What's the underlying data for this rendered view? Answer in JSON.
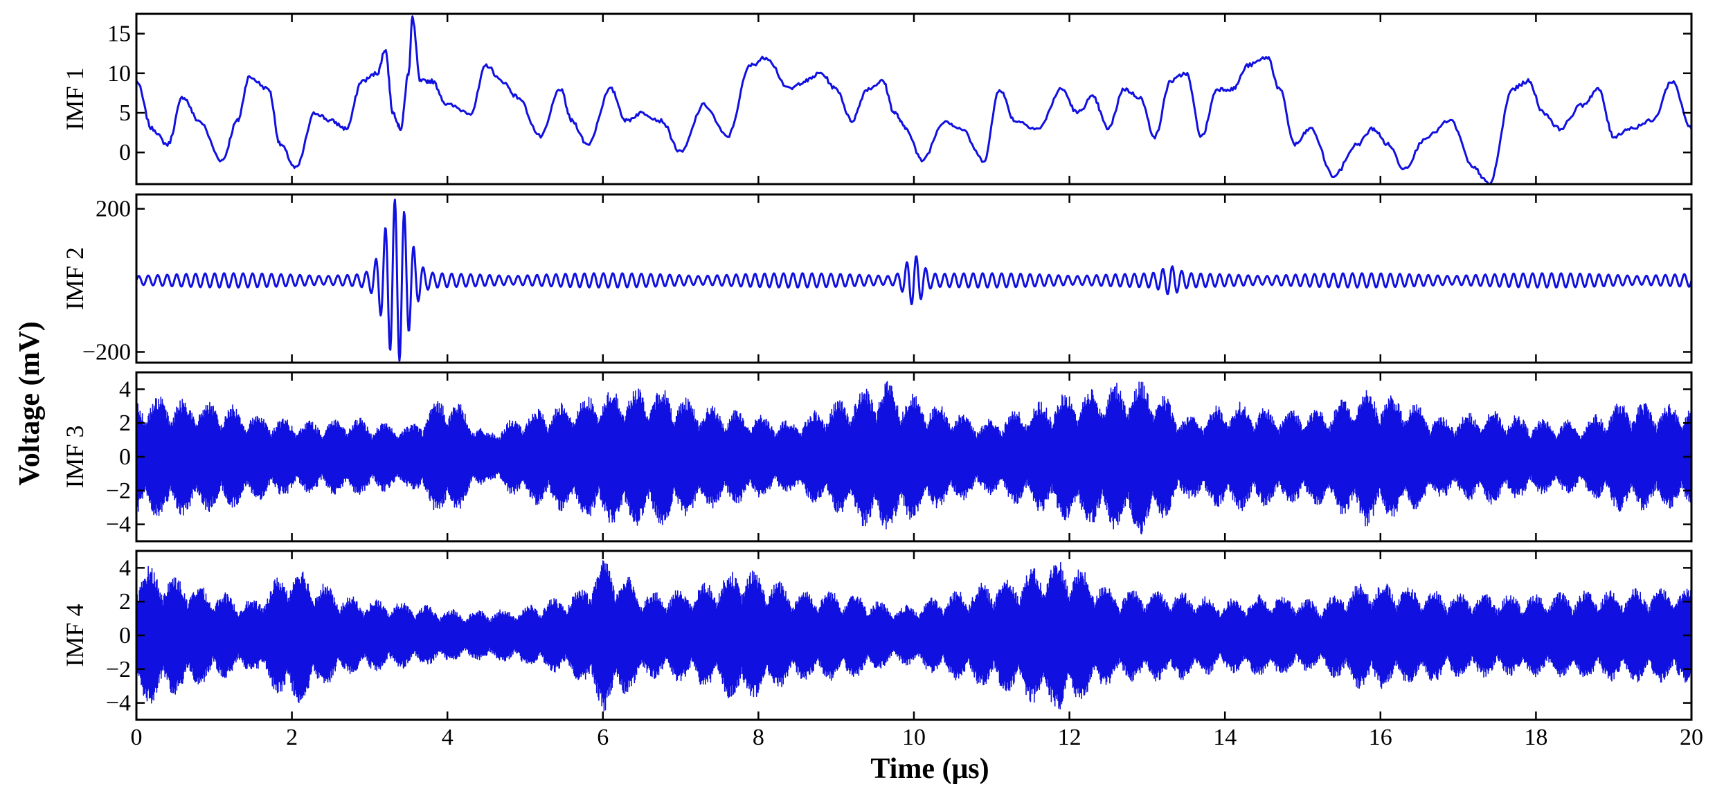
{
  "chart_data": {
    "type": "line",
    "xlabel": "Time (μs)",
    "ylabel": "Voltage (mV)",
    "xlim": [
      0,
      20
    ],
    "x_ticks": [
      0,
      2,
      4,
      6,
      8,
      10,
      12,
      14,
      16,
      18,
      20
    ],
    "x_tick_labels": [
      "0",
      "2",
      "4",
      "6",
      "8",
      "10",
      "12",
      "14",
      "16",
      "18",
      "20"
    ],
    "line_color": "#1010e0",
    "grid": false,
    "legend": "none",
    "panels": [
      {
        "name": "IMF 1",
        "ylim": [
          -4,
          17.5
        ],
        "y_ticks": [
          0,
          5,
          10,
          15
        ],
        "y_tick_labels": [
          "0",
          "5",
          "10",
          "15"
        ],
        "x": [
          0,
          0.2,
          0.4,
          0.6,
          0.8,
          1.1,
          1.3,
          1.45,
          1.7,
          1.85,
          2.05,
          2.3,
          2.5,
          2.7,
          2.9,
          3.1,
          3.2,
          3.3,
          3.4,
          3.5,
          3.55,
          3.65,
          3.8,
          4.0,
          4.3,
          4.5,
          4.7,
          4.9,
          5.2,
          5.45,
          5.6,
          5.8,
          6.1,
          6.3,
          6.5,
          6.75,
          7.0,
          7.3,
          7.6,
          7.9,
          8.1,
          8.4,
          8.6,
          8.8,
          9.0,
          9.2,
          9.4,
          9.6,
          9.75,
          9.9,
          10.1,
          10.4,
          10.6,
          10.9,
          11.1,
          11.3,
          11.6,
          11.9,
          12.1,
          12.3,
          12.5,
          12.7,
          12.9,
          13.1,
          13.3,
          13.5,
          13.7,
          13.9,
          14.1,
          14.3,
          14.55,
          14.7,
          14.9,
          15.1,
          15.4,
          15.7,
          15.9,
          16.1,
          16.3,
          16.6,
          16.9,
          17.2,
          17.4,
          17.7,
          17.9,
          18.1,
          18.3,
          18.6,
          18.8,
          19.0,
          19.2,
          19.5,
          19.75,
          20.0
        ],
        "y": [
          9,
          3,
          1,
          7,
          4,
          -1,
          4,
          9.5,
          8,
          1,
          -2,
          5,
          4,
          3,
          9,
          10,
          13,
          5,
          3,
          10,
          17,
          9,
          9,
          6,
          5,
          11,
          9,
          7,
          2,
          8,
          4,
          1,
          8,
          4,
          5,
          4,
          0,
          6,
          2,
          11,
          12,
          8,
          9,
          10,
          8,
          4,
          8,
          9,
          5,
          3,
          -1,
          4,
          3,
          -1,
          8,
          4,
          3,
          8,
          5,
          7,
          3,
          8,
          7,
          2,
          9,
          10,
          2,
          8,
          8,
          11,
          12,
          8,
          1,
          3,
          -3,
          1,
          3,
          1,
          -2,
          2,
          4,
          -2,
          -4,
          8,
          9,
          5,
          3,
          6,
          8,
          2,
          3,
          4,
          9,
          3
        ]
      },
      {
        "name": "IMF 2",
        "ylim": [
          -230,
          240
        ],
        "y_ticks": [
          -200,
          200
        ],
        "y_tick_labels": [
          "−200",
          "200"
        ],
        "bursts": [
          {
            "t": 3.35,
            "amplitude": 210,
            "width": 0.15
          },
          {
            "t": 10.0,
            "amplitude": 55,
            "width": 0.1
          },
          {
            "t": 13.3,
            "amplitude": 20,
            "width": 0.1
          }
        ]
      },
      {
        "name": "IMF 3",
        "ylim": [
          -5,
          5
        ],
        "y_ticks": [
          -4,
          -2,
          0,
          2,
          4
        ],
        "y_tick_labels": [
          "−4",
          "−2",
          "0",
          "2",
          "4"
        ],
        "envelope_peaks": [
          [
            0.3,
            3.5
          ],
          [
            1.2,
            3
          ],
          [
            1.6,
            2.4
          ],
          [
            2.1,
            2
          ],
          [
            2.8,
            2.2
          ],
          [
            3.5,
            1.7
          ],
          [
            4.0,
            3.8
          ],
          [
            4.5,
            1.3
          ],
          [
            5.0,
            2.5
          ],
          [
            5.6,
            3.3
          ],
          [
            6.2,
            4
          ],
          [
            6.8,
            4
          ],
          [
            7.3,
            3
          ],
          [
            7.9,
            2.5
          ],
          [
            8.4,
            2
          ],
          [
            9.0,
            3.2
          ],
          [
            9.6,
            4.5
          ],
          [
            10.2,
            3.2
          ],
          [
            10.9,
            2
          ],
          [
            11.4,
            2.8
          ],
          [
            11.9,
            3.6
          ],
          [
            12.5,
            4.2
          ],
          [
            13.0,
            4.5
          ],
          [
            13.5,
            2.3
          ],
          [
            14.1,
            3.2
          ],
          [
            14.6,
            2.7
          ],
          [
            15.3,
            2.8
          ],
          [
            15.8,
            4
          ],
          [
            16.3,
            3.4
          ],
          [
            16.8,
            2.2
          ],
          [
            17.4,
            2.7
          ],
          [
            18.0,
            2.1
          ],
          [
            18.6,
            2
          ],
          [
            19.1,
            3.2
          ],
          [
            19.7,
            3
          ]
        ]
      },
      {
        "name": "IMF 4",
        "ylim": [
          -5,
          5
        ],
        "y_ticks": [
          -4,
          -2,
          0,
          2,
          4
        ],
        "y_tick_labels": [
          "−4",
          "−2",
          "0",
          "2",
          "4"
        ],
        "envelope_peaks": [
          [
            0.2,
            4
          ],
          [
            0.9,
            2.7
          ],
          [
            1.5,
            1.9
          ],
          [
            2.0,
            4.2
          ],
          [
            2.7,
            2.2
          ],
          [
            3.5,
            1.8
          ],
          [
            4.2,
            1.3
          ],
          [
            4.9,
            1.5
          ],
          [
            5.7,
            2.5
          ],
          [
            6.0,
            4.5
          ],
          [
            6.6,
            2.4
          ],
          [
            7.2,
            2.8
          ],
          [
            7.8,
            4
          ],
          [
            8.5,
            2.6
          ],
          [
            9.2,
            2.5
          ],
          [
            9.8,
            1.5
          ],
          [
            10.6,
            2.6
          ],
          [
            11.3,
            3.5
          ],
          [
            11.9,
            4.5
          ],
          [
            12.6,
            2.6
          ],
          [
            13.3,
            2.6
          ],
          [
            14.0,
            2
          ],
          [
            14.6,
            2.4
          ],
          [
            15.2,
            1.9
          ],
          [
            15.8,
            3.2
          ],
          [
            16.4,
            2.8
          ],
          [
            17.0,
            2.4
          ],
          [
            17.7,
            2.3
          ],
          [
            18.3,
            2.4
          ],
          [
            19.0,
            2.6
          ],
          [
            19.6,
            2.7
          ]
        ]
      }
    ]
  }
}
